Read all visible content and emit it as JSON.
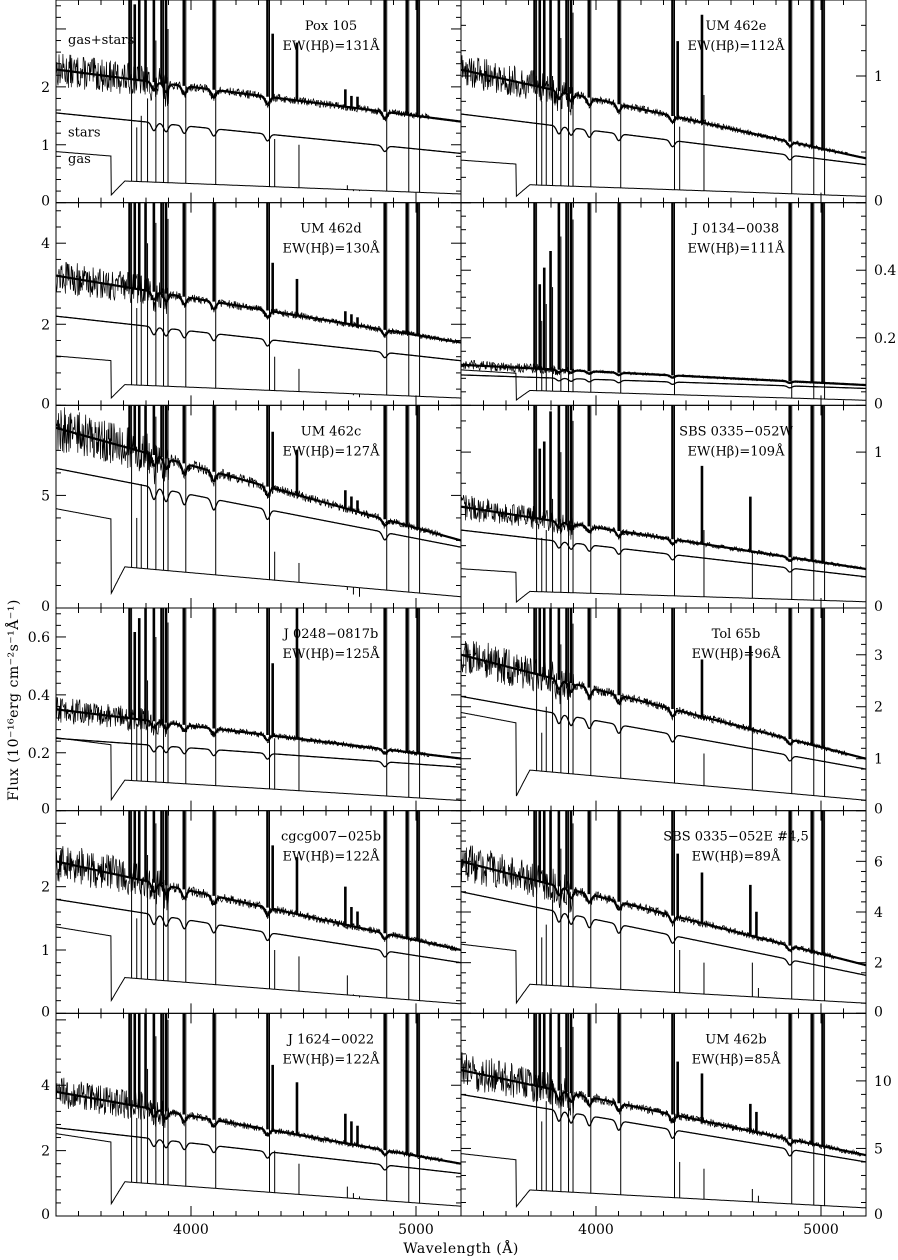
{
  "figure": {
    "ylabel": "Flux (10⁻¹⁶erg cm⁻²s⁻¹Å⁻¹)",
    "xlabel": "Wavelength (Å)"
  },
  "chart_data": [
    {
      "type": "line",
      "name": "Pox 105",
      "ew_label": "EW(Hβ)=131Å",
      "series_labels": [
        "gas+stars",
        "stars",
        "gas"
      ],
      "x_ticks": [
        4000,
        5000
      ],
      "y_ticks": [
        0,
        1,
        2
      ],
      "ylim": [
        0,
        3.5
      ],
      "xlim": [
        3400,
        5200
      ],
      "cont_total": [
        2.3,
        1.4
      ],
      "cont_stars": [
        1.55,
        0.85
      ],
      "cont_gas": [
        0.42,
        0.15
      ],
      "line_peaks": [
        {
          "wl": 3727,
          "gas": 3.5
        },
        {
          "wl": 3750,
          "gas": 1.3
        },
        {
          "wl": 3770,
          "gas": 1.5
        },
        {
          "wl": 3798,
          "gas": 1.8
        },
        {
          "wl": 3835,
          "gas": 2.8
        },
        {
          "wl": 3869,
          "gas": 3.5
        },
        {
          "wl": 3889,
          "gas": 3.0
        },
        {
          "wl": 3968,
          "gas": 3.5
        },
        {
          "wl": 4101,
          "gas": 3.5
        },
        {
          "wl": 4340,
          "gas": 3.5
        },
        {
          "wl": 4363,
          "gas": 1.1
        },
        {
          "wl": 4471,
          "gas": 1.0
        },
        {
          "wl": 4686,
          "gas": 0.3
        },
        {
          "wl": 4713,
          "gas": 0.2
        },
        {
          "wl": 4740,
          "gas": 0.2
        },
        {
          "wl": 4861,
          "gas": 3.5
        },
        {
          "wl": 4959,
          "gas": 3.5
        },
        {
          "wl": 5007,
          "gas": 3.5
        }
      ]
    },
    {
      "type": "line",
      "name": "UM 462e",
      "ew_label": "EW(Hβ)=112Å",
      "x_ticks": [
        4000,
        5000
      ],
      "y_ticks": [
        0,
        1
      ],
      "ylim": [
        0,
        1.6
      ],
      "xlim": [
        3400,
        5200
      ],
      "cont_total": [
        1.05,
        0.35
      ],
      "cont_stars": [
        0.7,
        0.3
      ],
      "cont_gas": [
        0.16,
        0.05
      ],
      "line_peaks": [
        {
          "wl": 3727,
          "gas": 1.6
        },
        {
          "wl": 3750,
          "gas": 0.8
        },
        {
          "wl": 3770,
          "gas": 0.9
        },
        {
          "wl": 3798,
          "gas": 1.0
        },
        {
          "wl": 3835,
          "gas": 1.3
        },
        {
          "wl": 3869,
          "gas": 1.6
        },
        {
          "wl": 3889,
          "gas": 1.5
        },
        {
          "wl": 3968,
          "gas": 1.6
        },
        {
          "wl": 4101,
          "gas": 1.6
        },
        {
          "wl": 4340,
          "gas": 1.6
        },
        {
          "wl": 4363,
          "gas": 0.6
        },
        {
          "wl": 4471,
          "gas": 0.85
        },
        {
          "wl": 4861,
          "gas": 1.6
        },
        {
          "wl": 4959,
          "gas": 1.6
        },
        {
          "wl": 5007,
          "gas": 1.6
        }
      ]
    },
    {
      "type": "line",
      "name": "UM 462d",
      "ew_label": "EW(Hβ)=130Å",
      "x_ticks": [
        4000,
        5000
      ],
      "y_ticks": [
        0,
        2,
        4
      ],
      "ylim": [
        0,
        5
      ],
      "xlim": [
        3400,
        5200
      ],
      "cont_total": [
        3.2,
        1.55
      ],
      "cont_stars": [
        2.2,
        1.1
      ],
      "cont_gas": [
        0.58,
        0.18
      ],
      "line_peaks": [
        {
          "wl": 3727,
          "gas": 5.0
        },
        {
          "wl": 3750,
          "gas": 2.4
        },
        {
          "wl": 3770,
          "gas": 3.2
        },
        {
          "wl": 3798,
          "gas": 4.0
        },
        {
          "wl": 3835,
          "gas": 4.5
        },
        {
          "wl": 3869,
          "gas": 5.0
        },
        {
          "wl": 3889,
          "gas": 4.6
        },
        {
          "wl": 3968,
          "gas": 5.0
        },
        {
          "wl": 4101,
          "gas": 5.0
        },
        {
          "wl": 4340,
          "gas": 5.0
        },
        {
          "wl": 4363,
          "gas": 1.2
        },
        {
          "wl": 4471,
          "gas": 0.9
        },
        {
          "wl": 4686,
          "gas": 0.3
        },
        {
          "wl": 4713,
          "gas": 0.25
        },
        {
          "wl": 4740,
          "gas": 0.2
        },
        {
          "wl": 4861,
          "gas": 5.0
        },
        {
          "wl": 4959,
          "gas": 5.0
        },
        {
          "wl": 5007,
          "gas": 5.0
        }
      ]
    },
    {
      "type": "line",
      "name": "J 0134−0038",
      "ew_label": "EW(Hβ)=111Å",
      "x_ticks": [
        4000,
        5000
      ],
      "y_ticks": [
        0,
        0.2,
        0.4
      ],
      "ylim": [
        0,
        0.6
      ],
      "xlim": [
        3400,
        5200
      ],
      "cont_total": [
        0.12,
        0.06
      ],
      "cont_stars": [
        0.09,
        0.05
      ],
      "cont_gas": [
        0.05,
        0.015
      ],
      "line_peaks": [
        {
          "wl": 3727,
          "gas": 0.6
        },
        {
          "wl": 3750,
          "gas": 0.25
        },
        {
          "wl": 3770,
          "gas": 0.3
        },
        {
          "wl": 3798,
          "gas": 0.35
        },
        {
          "wl": 3835,
          "gas": 0.5
        },
        {
          "wl": 3869,
          "gas": 0.6
        },
        {
          "wl": 3889,
          "gas": 0.55
        },
        {
          "wl": 3968,
          "gas": 0.6
        },
        {
          "wl": 4101,
          "gas": 0.6
        },
        {
          "wl": 4340,
          "gas": 0.6
        },
        {
          "wl": 4861,
          "gas": 0.6
        },
        {
          "wl": 4959,
          "gas": 0.6
        },
        {
          "wl": 5007,
          "gas": 0.6
        }
      ]
    },
    {
      "type": "line",
      "name": "UM 462c",
      "ew_label": "EW(Hβ)=127Å",
      "x_ticks": [
        4000,
        5000
      ],
      "y_ticks": [
        0,
        5
      ],
      "ylim": [
        0,
        9
      ],
      "xlim": [
        3400,
        5200
      ],
      "cont_total": [
        8.0,
        3.0
      ],
      "cont_stars": [
        6.2,
        2.7
      ],
      "cont_gas": [
        2.1,
        0.5
      ],
      "line_peaks": [
        {
          "wl": 3727,
          "gas": 9.0
        },
        {
          "wl": 3750,
          "gas": 4.0
        },
        {
          "wl": 3770,
          "gas": 5.5
        },
        {
          "wl": 3798,
          "gas": 7.0
        },
        {
          "wl": 3835,
          "gas": 8.5
        },
        {
          "wl": 3869,
          "gas": 9.0
        },
        {
          "wl": 3889,
          "gas": 9.0
        },
        {
          "wl": 3968,
          "gas": 9.0
        },
        {
          "wl": 4101,
          "gas": 9.0
        },
        {
          "wl": 4340,
          "gas": 9.0
        },
        {
          "wl": 4363,
          "gas": 2.5
        },
        {
          "wl": 4471,
          "gas": 2.0
        },
        {
          "wl": 4686,
          "gas": 0.8
        },
        {
          "wl": 4713,
          "gas": 0.6
        },
        {
          "wl": 4740,
          "gas": 0.5
        },
        {
          "wl": 4861,
          "gas": 9.0
        },
        {
          "wl": 4959,
          "gas": 9.0
        },
        {
          "wl": 5007,
          "gas": 9.0
        }
      ]
    },
    {
      "type": "line",
      "name": "SBS 0335−052W",
      "ew_label": "EW(Hβ)=109Å",
      "x_ticks": [
        4000,
        5000
      ],
      "y_ticks": [
        0,
        1
      ],
      "ylim": [
        0,
        1.3
      ],
      "xlim": [
        3400,
        5200
      ],
      "cont_total": [
        0.65,
        0.25
      ],
      "cont_stars": [
        0.5,
        0.2
      ],
      "cont_gas": [
        0.12,
        0.04
      ],
      "line_peaks": [
        {
          "wl": 3727,
          "gas": 1.3
        },
        {
          "wl": 3750,
          "gas": 0.45
        },
        {
          "wl": 3770,
          "gas": 0.5
        },
        {
          "wl": 3798,
          "gas": 0.7
        },
        {
          "wl": 3835,
          "gas": 1.0
        },
        {
          "wl": 3869,
          "gas": 1.3
        },
        {
          "wl": 3889,
          "gas": 1.2
        },
        {
          "wl": 3968,
          "gas": 1.3
        },
        {
          "wl": 4101,
          "gas": 1.3
        },
        {
          "wl": 4340,
          "gas": 1.3
        },
        {
          "wl": 4471,
          "gas": 0.5
        },
        {
          "wl": 4686,
          "gas": 0.35
        },
        {
          "wl": 4861,
          "gas": 1.3
        },
        {
          "wl": 4959,
          "gas": 1.3
        },
        {
          "wl": 5007,
          "gas": 1.3
        }
      ]
    },
    {
      "type": "line",
      "name": "J 0248−0817b",
      "ew_label": "EW(Hβ)=125Å",
      "x_ticks": [
        4000,
        5000
      ],
      "y_ticks": [
        0,
        0.2,
        0.4,
        0.6
      ],
      "ylim": [
        0,
        0.7
      ],
      "xlim": [
        3400,
        5200
      ],
      "cont_total": [
        0.35,
        0.18
      ],
      "cont_stars": [
        0.25,
        0.15
      ],
      "cont_gas": [
        0.12,
        0.035
      ],
      "line_peaks": [
        {
          "wl": 3727,
          "gas": 0.7
        },
        {
          "wl": 3750,
          "gas": 0.3
        },
        {
          "wl": 3770,
          "gas": 0.35
        },
        {
          "wl": 3798,
          "gas": 0.45
        },
        {
          "wl": 3835,
          "gas": 0.6
        },
        {
          "wl": 3869,
          "gas": 0.7
        },
        {
          "wl": 3889,
          "gas": 0.65
        },
        {
          "wl": 3968,
          "gas": 0.7
        },
        {
          "wl": 4101,
          "gas": 0.7
        },
        {
          "wl": 4340,
          "gas": 0.7
        },
        {
          "wl": 4363,
          "gas": 0.25
        },
        {
          "wl": 4471,
          "gas": 0.55
        },
        {
          "wl": 4861,
          "gas": 0.7
        },
        {
          "wl": 4959,
          "gas": 0.7
        },
        {
          "wl": 5007,
          "gas": 0.7
        }
      ]
    },
    {
      "type": "line",
      "name": "Tol 65b",
      "ew_label": "EW(Hβ)=96Å",
      "x_ticks": [
        4000,
        5000
      ],
      "y_ticks": [
        0,
        1,
        2,
        3
      ],
      "ylim": [
        0,
        3.9
      ],
      "xlim": [
        3400,
        5200
      ],
      "cont_total": [
        3.0,
        1.0
      ],
      "cont_stars": [
        2.2,
        0.8
      ],
      "cont_gas": [
        0.9,
        0.2
      ],
      "line_peaks": [
        {
          "wl": 3727,
          "gas": 3.9
        },
        {
          "wl": 3750,
          "gas": 1.5
        },
        {
          "wl": 3770,
          "gas": 2.0
        },
        {
          "wl": 3798,
          "gas": 2.5
        },
        {
          "wl": 3835,
          "gas": 3.2
        },
        {
          "wl": 3869,
          "gas": 3.9
        },
        {
          "wl": 3889,
          "gas": 3.6
        },
        {
          "wl": 3968,
          "gas": 3.9
        },
        {
          "wl": 4101,
          "gas": 3.9
        },
        {
          "wl": 4340,
          "gas": 3.9
        },
        {
          "wl": 4471,
          "gas": 1.1
        },
        {
          "wl": 4686,
          "gas": 1.6
        },
        {
          "wl": 4861,
          "gas": 3.9
        },
        {
          "wl": 4959,
          "gas": 3.9
        },
        {
          "wl": 5007,
          "gas": 3.9
        }
      ]
    },
    {
      "type": "line",
      "name": "cgcg007−025b",
      "ew_label": "EW(Hβ)=122Å",
      "x_ticks": [
        4000,
        5000
      ],
      "y_ticks": [
        0,
        1,
        2
      ],
      "ylim": [
        0,
        3.2
      ],
      "xlim": [
        3400,
        5200
      ],
      "cont_total": [
        2.4,
        1.0
      ],
      "cont_stars": [
        1.8,
        0.8
      ],
      "cont_gas": [
        0.65,
        0.15
      ],
      "line_peaks": [
        {
          "wl": 3727,
          "gas": 3.2
        },
        {
          "wl": 3750,
          "gas": 1.5
        },
        {
          "wl": 3770,
          "gas": 2.0
        },
        {
          "wl": 3798,
          "gas": 2.5
        },
        {
          "wl": 3835,
          "gas": 3.0
        },
        {
          "wl": 3869,
          "gas": 3.2
        },
        {
          "wl": 3889,
          "gas": 3.2
        },
        {
          "wl": 3968,
          "gas": 3.2
        },
        {
          "wl": 4101,
          "gas": 3.2
        },
        {
          "wl": 4340,
          "gas": 3.2
        },
        {
          "wl": 4363,
          "gas": 1.0
        },
        {
          "wl": 4471,
          "gas": 0.9
        },
        {
          "wl": 4686,
          "gas": 0.6
        },
        {
          "wl": 4713,
          "gas": 0.3
        },
        {
          "wl": 4740,
          "gas": 0.25
        },
        {
          "wl": 4861,
          "gas": 3.2
        },
        {
          "wl": 4959,
          "gas": 3.2
        },
        {
          "wl": 5007,
          "gas": 3.2
        }
      ]
    },
    {
      "type": "line",
      "name": "SBS 0335−052E #4,5",
      "ew_label": "EW(Hβ)=89Å",
      "x_ticks": [
        4000,
        5000
      ],
      "y_ticks": [
        0,
        2,
        4,
        6
      ],
      "ylim": [
        0,
        8
      ],
      "xlim": [
        3400,
        5200
      ],
      "cont_total": [
        6.0,
        1.9
      ],
      "cont_stars": [
        4.8,
        1.5
      ],
      "cont_gas": [
        1.3,
        0.4
      ],
      "line_peaks": [
        {
          "wl": 3727,
          "gas": 8.0
        },
        {
          "wl": 3750,
          "gas": 3.0
        },
        {
          "wl": 3770,
          "gas": 3.5
        },
        {
          "wl": 3798,
          "gas": 4.5
        },
        {
          "wl": 3835,
          "gas": 6.5
        },
        {
          "wl": 3869,
          "gas": 8.0
        },
        {
          "wl": 3889,
          "gas": 7.5
        },
        {
          "wl": 3968,
          "gas": 8.0
        },
        {
          "wl": 4101,
          "gas": 8.0
        },
        {
          "wl": 4340,
          "gas": 8.0
        },
        {
          "wl": 4363,
          "gas": 2.5
        },
        {
          "wl": 4471,
          "gas": 2.0
        },
        {
          "wl": 4686,
          "gas": 2.0
        },
        {
          "wl": 4713,
          "gas": 1.0
        },
        {
          "wl": 4861,
          "gas": 8.0
        },
        {
          "wl": 4959,
          "gas": 8.0
        },
        {
          "wl": 5007,
          "gas": 8.0
        }
      ]
    },
    {
      "type": "line",
      "name": "J 1624−0022",
      "ew_label": "EW(Hβ)=122Å",
      "x_ticks": [
        4000,
        5000
      ],
      "y_ticks": [
        0,
        2,
        4
      ],
      "ylim": [
        0,
        6.2
      ],
      "xlim": [
        3400,
        5200
      ],
      "cont_total": [
        3.8,
        1.6
      ],
      "cont_stars": [
        2.7,
        1.3
      ],
      "cont_gas": [
        1.2,
        0.3
      ],
      "line_peaks": [
        {
          "wl": 3727,
          "gas": 6.2
        },
        {
          "wl": 3750,
          "gas": 3.0
        },
        {
          "wl": 3770,
          "gas": 3.8
        },
        {
          "wl": 3798,
          "gas": 4.5
        },
        {
          "wl": 3835,
          "gas": 5.5
        },
        {
          "wl": 3869,
          "gas": 6.2
        },
        {
          "wl": 3889,
          "gas": 6.0
        },
        {
          "wl": 3968,
          "gas": 6.2
        },
        {
          "wl": 4101,
          "gas": 6.2
        },
        {
          "wl": 4340,
          "gas": 6.2
        },
        {
          "wl": 4363,
          "gas": 2.0
        },
        {
          "wl": 4471,
          "gas": 1.6
        },
        {
          "wl": 4686,
          "gas": 0.9
        },
        {
          "wl": 4713,
          "gas": 0.7
        },
        {
          "wl": 4740,
          "gas": 0.6
        },
        {
          "wl": 4861,
          "gas": 6.2
        },
        {
          "wl": 4959,
          "gas": 6.2
        },
        {
          "wl": 5007,
          "gas": 6.2
        }
      ]
    },
    {
      "type": "line",
      "name": "UM 462b",
      "ew_label": "EW(Hβ)=85Å",
      "x_ticks": [
        4000,
        5000
      ],
      "y_ticks": [
        0,
        5,
        10
      ],
      "ylim": [
        0,
        15
      ],
      "xlim": [
        3400,
        5200
      ],
      "cont_total": [
        10.8,
        4.5
      ],
      "cont_stars": [
        9.0,
        4.0
      ],
      "cont_gas": [
        2.2,
        0.6
      ],
      "line_peaks": [
        {
          "wl": 3727,
          "gas": 15.0
        },
        {
          "wl": 3750,
          "gas": 7.0
        },
        {
          "wl": 3770,
          "gas": 8.5
        },
        {
          "wl": 3798,
          "gas": 10.0
        },
        {
          "wl": 3835,
          "gas": 12.5
        },
        {
          "wl": 3869,
          "gas": 15.0
        },
        {
          "wl": 3889,
          "gas": 14.0
        },
        {
          "wl": 3968,
          "gas": 15.0
        },
        {
          "wl": 4101,
          "gas": 15.0
        },
        {
          "wl": 4340,
          "gas": 15.0
        },
        {
          "wl": 4363,
          "gas": 4.0
        },
        {
          "wl": 4471,
          "gas": 3.5
        },
        {
          "wl": 4686,
          "gas": 2.0
        },
        {
          "wl": 4713,
          "gas": 1.5
        },
        {
          "wl": 4861,
          "gas": 15.0
        },
        {
          "wl": 4959,
          "gas": 15.0
        },
        {
          "wl": 5007,
          "gas": 15.0
        }
      ]
    }
  ]
}
